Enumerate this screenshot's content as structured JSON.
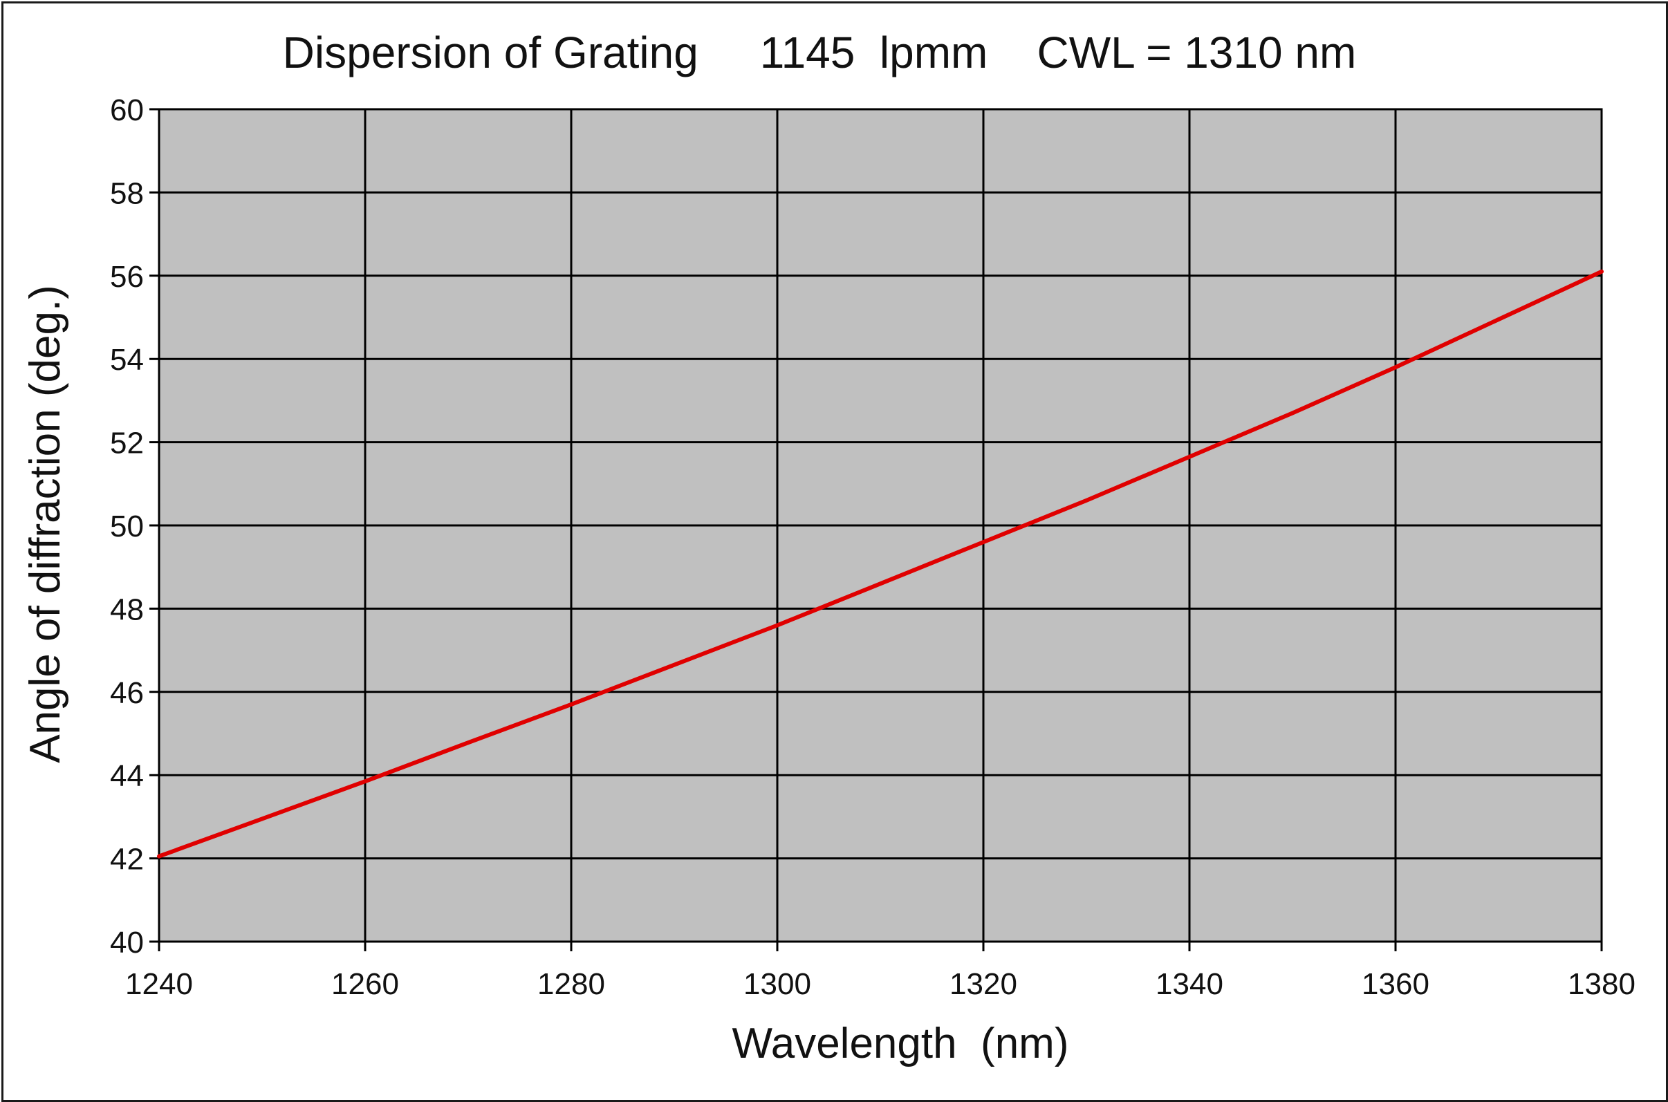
{
  "chart_data": {
    "type": "line",
    "title": "Dispersion of Grating     1145  lpmm    CWL = 1310 nm",
    "xlabel": "Wavelength  (nm)",
    "ylabel": "Angle of diffraction (deg.)",
    "xlim": [
      1240,
      1380
    ],
    "ylim": [
      40,
      60
    ],
    "x_ticks": [
      1240,
      1260,
      1280,
      1300,
      1320,
      1340,
      1360,
      1380
    ],
    "y_ticks": [
      40,
      42,
      44,
      46,
      48,
      50,
      52,
      54,
      56,
      58,
      60
    ],
    "x_tick_labels": [
      "1240",
      "1260",
      "1280",
      "1300",
      "1320",
      "1340",
      "1360",
      "1380"
    ],
    "y_tick_labels": [
      "40",
      "42",
      "44",
      "46",
      "48",
      "50",
      "52",
      "54",
      "56",
      "58",
      "60"
    ],
    "grid": true,
    "legend": "none",
    "plot_background": "#c0c0c0",
    "grid_color": "#000000",
    "series": [
      {
        "color": "#e00000",
        "x": [
          1240,
          1250,
          1260,
          1270,
          1280,
          1290,
          1300,
          1310,
          1320,
          1330,
          1340,
          1350,
          1360,
          1370,
          1380
        ],
        "y": [
          42.05,
          42.95,
          43.85,
          44.78,
          45.7,
          46.65,
          47.6,
          48.6,
          49.6,
          50.6,
          51.65,
          52.7,
          53.8,
          54.95,
          56.1
        ]
      }
    ]
  }
}
